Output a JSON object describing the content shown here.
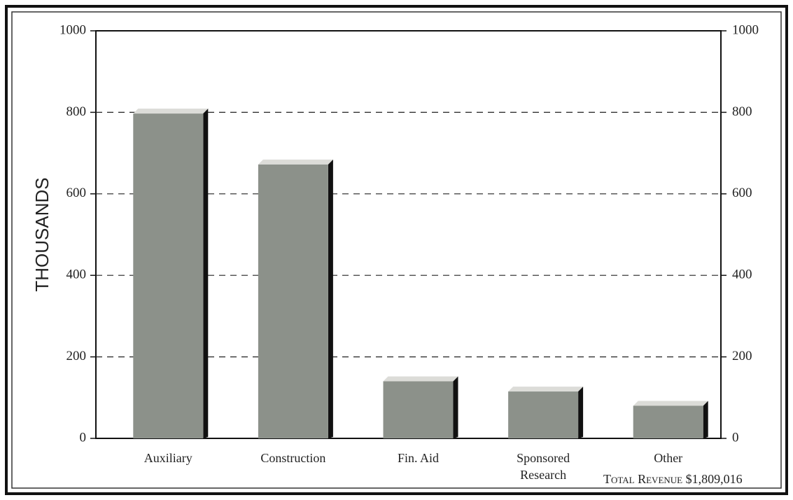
{
  "chart_data": {
    "type": "bar",
    "y_label": "THOUSANDS",
    "annotation": "Total Revenue $1,809,016",
    "categories": [
      "Auxiliary",
      "Construction",
      "Fin. Aid",
      "Sponsored Research",
      "Other"
    ],
    "values": [
      797,
      672,
      140,
      115,
      80
    ],
    "color": "#8c918a",
    "ylim": [
      0,
      1000
    ],
    "yticks": [
      0,
      200,
      400,
      600,
      800,
      1000
    ],
    "y2lim": [
      0,
      1000
    ],
    "y2ticks": [
      0,
      200,
      400,
      600,
      800,
      1000
    ],
    "grid": true
  }
}
